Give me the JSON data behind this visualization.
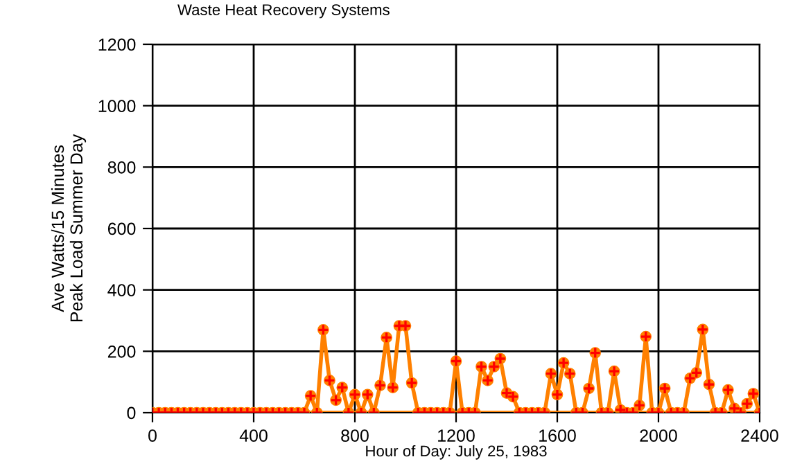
{
  "chart_data": {
    "type": "line",
    "title": "Waste Heat Recovery Systems",
    "xlabel": "Hour of Day: July 25, 1983",
    "ylabel": "Ave Watts/15 Minutes\nPeak Load Summer Day",
    "x": [
      0,
      25,
      50,
      75,
      100,
      125,
      150,
      175,
      200,
      225,
      250,
      275,
      300,
      325,
      350,
      375,
      400,
      425,
      450,
      475,
      500,
      525,
      550,
      575,
      600,
      625,
      650,
      675,
      700,
      725,
      750,
      775,
      800,
      825,
      850,
      875,
      900,
      925,
      950,
      975,
      1000,
      1025,
      1050,
      1075,
      1100,
      1125,
      1150,
      1175,
      1200,
      1225,
      1250,
      1275,
      1300,
      1325,
      1350,
      1375,
      1400,
      1425,
      1450,
      1475,
      1500,
      1525,
      1550,
      1575,
      1600,
      1625,
      1650,
      1675,
      1700,
      1725,
      1750,
      1775,
      1800,
      1825,
      1850,
      1875,
      1900,
      1925,
      1950,
      1975,
      2000,
      2025,
      2050,
      2075,
      2100,
      2125,
      2150,
      2175,
      2200,
      2225,
      2250,
      2275,
      2300,
      2325,
      2350,
      2375,
      2400
    ],
    "series": [
      {
        "color": "#ff8000",
        "values": [
          0,
          0,
          0,
          0,
          0,
          0,
          0,
          0,
          0,
          0,
          0,
          0,
          0,
          0,
          0,
          0,
          0,
          0,
          0,
          0,
          0,
          0,
          0,
          0,
          0,
          55,
          0,
          270,
          105,
          41,
          82,
          0,
          59,
          0,
          59,
          0,
          89,
          245,
          82,
          283,
          283,
          97,
          0,
          0,
          0,
          0,
          0,
          0,
          168,
          0,
          0,
          0,
          150,
          105,
          150,
          176,
          64,
          52,
          0,
          0,
          0,
          0,
          0,
          127,
          59,
          162,
          127,
          0,
          0,
          79,
          195,
          0,
          0,
          135,
          9,
          0,
          0,
          24,
          248,
          0,
          0,
          79,
          0,
          0,
          0,
          112,
          130,
          271,
          92,
          0,
          0,
          74,
          14,
          0,
          29,
          62,
          0
        ]
      }
    ],
    "xlim": [
      0,
      2400
    ],
    "xticks": [
      0,
      400,
      800,
      1200,
      1600,
      2000,
      2400
    ],
    "ylim": [
      0,
      1200
    ],
    "yticks": [
      0,
      200,
      400,
      600,
      800,
      1000,
      1200
    ],
    "grid": true,
    "marker": "circle",
    "line_style": "solid",
    "ref_lines": [
      {
        "axis": "y",
        "value": 0,
        "color": "#ff8000"
      }
    ]
  }
}
